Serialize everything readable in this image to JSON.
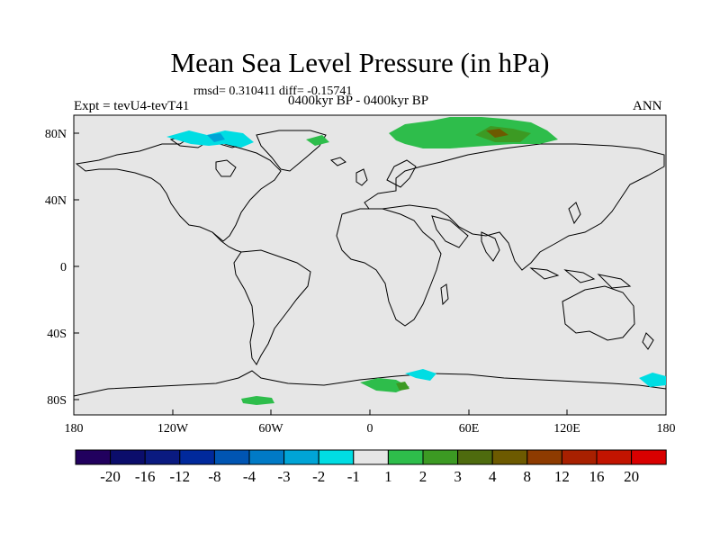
{
  "title": "Mean Sea Level Pressure (in hPa)",
  "stats": "rmsd= 0.310411 diff= -0.15741",
  "expt": "Expt = tevU4-tevT41",
  "period": "0400kyr BP - 0400kyr BP",
  "season": "ANN",
  "lat_ticks": [
    "80N",
    "40N",
    "0",
    "40S",
    "80S"
  ],
  "lon_ticks": [
    "180",
    "120W",
    "60W",
    "0",
    "60E",
    "120E",
    "180"
  ],
  "colors": {
    "land_ocean_background": "#e6e6e6",
    "coastline": "#000000"
  },
  "colorbar": {
    "labels": [
      "-20",
      "-16",
      "-12",
      "-8",
      "-4",
      "-3",
      "-2",
      "-1",
      "1",
      "2",
      "3",
      "4",
      "8",
      "12",
      "16",
      "20"
    ],
    "colors": [
      "#21005e",
      "#0b0d6b",
      "#0a1a80",
      "#00299c",
      "#0055b3",
      "#007ac6",
      "#00a4d6",
      "#00dde3",
      "#e6e6e6",
      "#2ebd4b",
      "#3c9a23",
      "#4e6b0e",
      "#6d5a00",
      "#8e3b00",
      "#a82000",
      "#c21400",
      "#d90000"
    ]
  }
}
